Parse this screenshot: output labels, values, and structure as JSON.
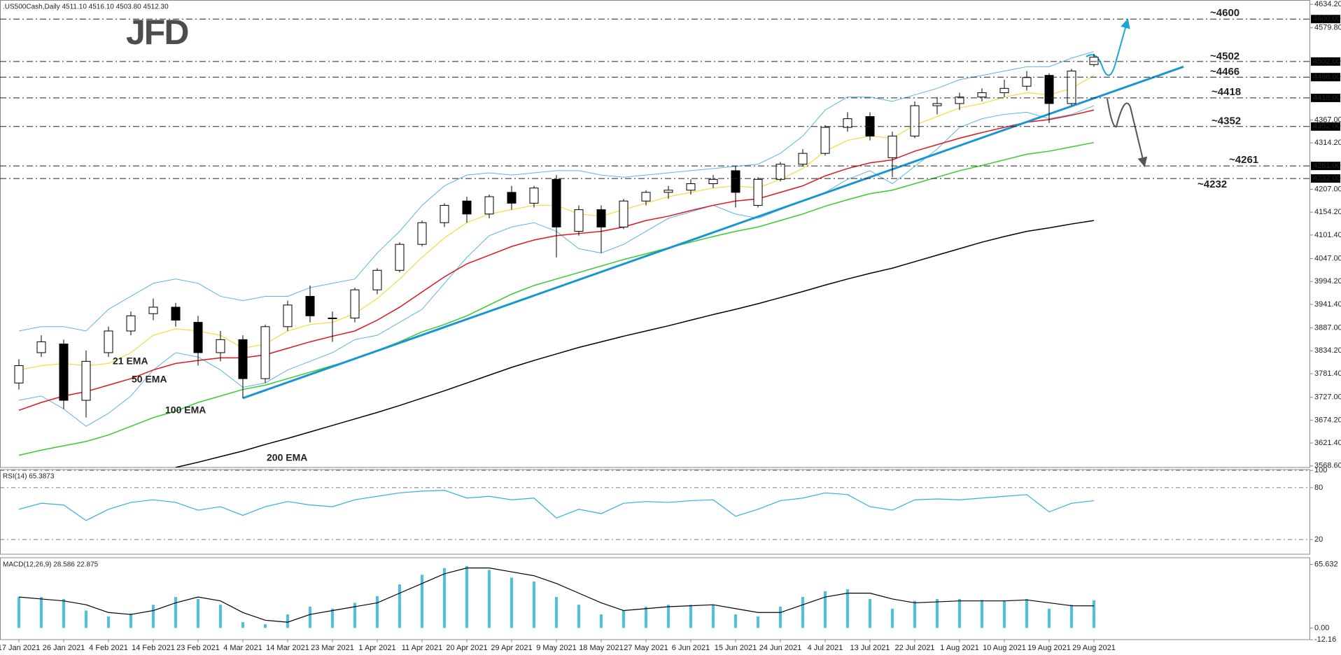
{
  "logo": "JFD",
  "chart_data": [
    {
      "type": "candlestick",
      "title": ".US500Cash,Daily  4511.10 4516.10 4503.80 4512.30",
      "categories": [
        "17 Jan 2021",
        null,
        "26 Jan 2021",
        null,
        "4 Feb 2021",
        null,
        "14 Feb 2021",
        null,
        "23 Feb 2021",
        null,
        "4 Mar 2021",
        null,
        "14 Mar 2021",
        null,
        "23 Mar 2021",
        null,
        "1 Apr 2021",
        null,
        "11 Apr 2021",
        null,
        "20 Apr 2021",
        null,
        "29 Apr 2021",
        null,
        "9 May 2021",
        null,
        "18 May 2021",
        null,
        "27 May 2021",
        null,
        "6 Jun 2021",
        null,
        "15 Jun 2021",
        null,
        "24 Jun 2021",
        null,
        "4 Jul 2021",
        null,
        "13 Jul 2021",
        null,
        "22 Jul 2021",
        null,
        "1 Aug 2021",
        null,
        "10 Aug 2021",
        null,
        "19 Aug 2021",
        null,
        "29 Aug 2021"
      ],
      "open": [
        3760,
        3830,
        3850,
        3720,
        3830,
        3880,
        3920,
        3935,
        3900,
        3830,
        3860,
        3770,
        3890,
        3960,
        3910,
        3910,
        3975,
        4020,
        4080,
        4130,
        4180,
        4150,
        4200,
        4175,
        4230,
        4110,
        4160,
        4120,
        4180,
        4200,
        4205,
        4220,
        4250,
        4170,
        4230,
        4265,
        4290,
        4350,
        4375,
        4280,
        4330,
        4400,
        4405,
        4420,
        4430,
        4445,
        4470,
        4405,
        4495
      ],
      "high": [
        3815,
        3870,
        3860,
        3835,
        3890,
        3925,
        3955,
        3945,
        3915,
        3880,
        3870,
        3895,
        3950,
        3985,
        3925,
        3980,
        4025,
        4085,
        4135,
        4175,
        4190,
        4195,
        4215,
        4215,
        4240,
        4170,
        4170,
        4185,
        4205,
        4215,
        4230,
        4240,
        4260,
        4235,
        4270,
        4300,
        4355,
        4385,
        4385,
        4340,
        4410,
        4420,
        4430,
        4440,
        4460,
        4480,
        4475,
        4485,
        4520
      ],
      "low": [
        3745,
        3820,
        3700,
        3680,
        3820,
        3870,
        3905,
        3890,
        3800,
        3810,
        3725,
        3760,
        3880,
        3900,
        3855,
        3900,
        3965,
        4015,
        4075,
        4120,
        4130,
        4140,
        4160,
        4165,
        4050,
        4100,
        4060,
        4115,
        4170,
        4185,
        4195,
        4210,
        4165,
        4165,
        4225,
        4260,
        4285,
        4340,
        4320,
        4235,
        4325,
        4380,
        4390,
        4410,
        4420,
        4435,
        4360,
        4400,
        4490
      ],
      "close": [
        3800,
        3855,
        3720,
        3810,
        3880,
        3915,
        3935,
        3905,
        3830,
        3860,
        3770,
        3890,
        3940,
        3915,
        3910,
        3975,
        4020,
        4080,
        4130,
        4170,
        4150,
        4190,
        4175,
        4210,
        4120,
        4160,
        4120,
        4180,
        4200,
        4205,
        4220,
        4230,
        4200,
        4230,
        4265,
        4290,
        4350,
        4370,
        4330,
        4330,
        4400,
        4405,
        4420,
        4430,
        4440,
        4465,
        4405,
        4480,
        4512
      ],
      "up_color": "#ffffff",
      "down_color": "#000000",
      "series": [
        {
          "name": "21 EMA",
          "color": "#f2dc3c",
          "values": [
            3790,
            3800,
            3805,
            3800,
            3805,
            3830,
            3870,
            3885,
            3880,
            3870,
            3840,
            3850,
            3880,
            3895,
            3900,
            3920,
            3955,
            4000,
            4050,
            4095,
            4130,
            4150,
            4160,
            4170,
            4170,
            4150,
            4145,
            4160,
            4175,
            4190,
            4200,
            4210,
            4215,
            4210,
            4230,
            4255,
            4295,
            4320,
            4330,
            4325,
            4355,
            4375,
            4395,
            4405,
            4420,
            4430,
            4425,
            4440,
            4470
          ]
        },
        {
          "name": "50 EMA",
          "color": "#e3141e",
          "values": [
            3697,
            3715,
            3730,
            3740,
            3755,
            3770,
            3790,
            3805,
            3812,
            3818,
            3818,
            3825,
            3840,
            3855,
            3868,
            3880,
            3905,
            3935,
            3970,
            4005,
            4035,
            4055,
            4075,
            4090,
            4100,
            4105,
            4110,
            4120,
            4135,
            4145,
            4158,
            4170,
            4180,
            4185,
            4200,
            4215,
            4238,
            4255,
            4268,
            4275,
            4295,
            4310,
            4325,
            4338,
            4350,
            4362,
            4368,
            4378,
            4390
          ]
        },
        {
          "name": "100 EMA",
          "color": "#36cc2e",
          "values": [
            3593,
            3605,
            3615,
            3625,
            3640,
            3660,
            3680,
            3695,
            3715,
            3730,
            3745,
            3755,
            3770,
            3785,
            3800,
            3815,
            3835,
            3855,
            3878,
            3895,
            3915,
            3940,
            3965,
            3985,
            4000,
            4015,
            4030,
            4045,
            4058,
            4072,
            4085,
            4098,
            4110,
            4120,
            4135,
            4150,
            4168,
            4183,
            4197,
            4205,
            4220,
            4235,
            4250,
            4262,
            4275,
            4288,
            4295,
            4305,
            4315
          ]
        },
        {
          "name": "200 EMA",
          "color": "#000000",
          "values": [
            null,
            null,
            null,
            null,
            null,
            null,
            null,
            3565,
            3577,
            3590,
            3603,
            3618,
            3632,
            3647,
            3662,
            3677,
            3692,
            3708,
            3725,
            3742,
            3760,
            3778,
            3796,
            3812,
            3827,
            3842,
            3855,
            3868,
            3880,
            3892,
            3905,
            3918,
            3930,
            3943,
            3957,
            3971,
            3986,
            4000,
            4013,
            4025,
            4040,
            4055,
            4070,
            4085,
            4098,
            4110,
            4118,
            4127,
            4135
          ]
        }
      ],
      "bollinger": {
        "color": "#5ab4e6",
        "upper": [
          3880,
          3890,
          3890,
          3880,
          3930,
          3960,
          3990,
          4000,
          3990,
          3960,
          3950,
          3960,
          3960,
          3980,
          3990,
          4000,
          4060,
          4110,
          4170,
          4215,
          4240,
          4245,
          4240,
          4245,
          4250,
          4250,
          4240,
          4235,
          4240,
          4245,
          4250,
          4255,
          4260,
          4265,
          4290,
          4330,
          4390,
          4420,
          4420,
          4410,
          4425,
          4440,
          4460,
          4470,
          4480,
          4490,
          4490,
          4510,
          4525
        ],
        "lower": [
          3720,
          3730,
          3700,
          3660,
          3690,
          3730,
          3790,
          3830,
          3820,
          3790,
          3750,
          3760,
          3790,
          3810,
          3830,
          3860,
          3870,
          3900,
          3930,
          3990,
          4050,
          4100,
          4120,
          4130,
          4110,
          4070,
          4060,
          4080,
          4110,
          4140,
          4155,
          4170,
          4150,
          4140,
          4160,
          4180,
          4200,
          4230,
          4250,
          4220,
          4260,
          4300,
          4350,
          4370,
          4380,
          4385,
          4370,
          4380,
          4400
        ]
      },
      "trendline": {
        "color": "#1996d2",
        "x": [
          10,
          52
        ],
        "values": [
          3725,
          4490
        ]
      },
      "levels": [
        {
          "value": 4600,
          "label": "4600.00",
          "annotation": "~4600",
          "color": "#1aa7d6"
        },
        {
          "value": 4502,
          "label": "4502.00",
          "annotation": "~4502",
          "color": "#1aa7d6"
        },
        {
          "value": 4466,
          "label": "4466.00",
          "annotation": "~4466",
          "color": "#1aa7d6"
        },
        {
          "value": 4418,
          "label": "4418.00",
          "annotation": "~4418",
          "color": "#555555"
        },
        {
          "value": 4352,
          "label": "4352.00",
          "annotation": "~4352",
          "color": "#555555"
        },
        {
          "value": 4261,
          "label": "4261.00",
          "annotation": "~4261",
          "color": "#555555"
        },
        {
          "value": 4232,
          "label": "4232.00",
          "annotation": "~4232",
          "color": "#555555"
        }
      ],
      "ylim": [
        3565,
        4644
      ],
      "yticks": [
        {
          "value": 4634.2,
          "label": "4634.20"
        },
        {
          "value": 4579.8,
          "label": "4579.80"
        },
        {
          "value": 4367,
          "label": "4367.00"
        },
        {
          "value": 4314.2,
          "label": "4314.20"
        },
        {
          "value": 4207,
          "label": "4207.00"
        },
        {
          "value": 4154.2,
          "label": "4154.20"
        },
        {
          "value": 4101.4,
          "label": "4101.40"
        },
        {
          "value": 4047,
          "label": "4047.00"
        },
        {
          "value": 3994.2,
          "label": "3994.20"
        },
        {
          "value": 3941.4,
          "label": "3941.40"
        },
        {
          "value": 3887,
          "label": "3887.00"
        },
        {
          "value": 3834.2,
          "label": "3834.20"
        },
        {
          "value": 3781.4,
          "label": "3781.40"
        },
        {
          "value": 3727,
          "label": "3727.00"
        },
        {
          "value": 3674.2,
          "label": "3674.20"
        },
        {
          "value": 3621.4,
          "label": "3621.40"
        },
        {
          "value": 3568.6,
          "label": "3568.60"
        }
      ]
    },
    {
      "type": "line",
      "title": "RSI(14) 65.3873",
      "color": "#2fb1dc",
      "values": [
        55,
        62,
        60,
        42,
        55,
        63,
        66,
        63,
        54,
        58,
        48,
        58,
        64,
        60,
        58,
        66,
        70,
        74,
        76,
        77,
        68,
        70,
        66,
        68,
        45,
        55,
        50,
        62,
        64,
        63,
        65,
        66,
        47,
        55,
        65,
        68,
        74,
        72,
        58,
        54,
        66,
        67,
        66,
        68,
        70,
        72,
        52,
        62,
        65
      ],
      "ylim": [
        3,
        101
      ],
      "yticks": [
        100,
        80,
        20
      ],
      "grid": true
    },
    {
      "type": "macd",
      "title": "MACD(12,26,9) 28.586 22.875",
      "color": "#4fbfe0",
      "values": [
        32,
        32,
        30,
        18,
        12,
        15,
        24,
        32,
        30,
        24,
        6,
        4,
        14,
        22,
        20,
        26,
        33,
        45,
        55,
        62,
        64,
        60,
        52,
        48,
        32,
        24,
        14,
        18,
        22,
        24,
        24,
        24,
        14,
        12,
        22,
        32,
        38,
        40,
        30,
        20,
        28,
        30,
        30,
        29,
        28,
        30,
        20,
        24,
        28.6
      ],
      "signal": {
        "color": "#000000",
        "values": [
          32,
          30,
          28,
          24,
          16,
          14,
          18,
          26,
          32,
          28,
          16,
          8,
          6,
          14,
          18,
          22,
          26,
          36,
          46,
          56,
          62,
          62,
          58,
          54,
          46,
          36,
          26,
          18,
          20,
          22,
          23,
          24,
          20,
          16,
          16,
          24,
          32,
          36,
          36,
          30,
          26,
          27,
          28,
          28,
          28,
          29,
          26,
          23,
          22.9
        ]
      },
      "ylim": [
        -12,
        72.6
      ],
      "yticks": [
        65.632,
        {
          "value": 0,
          "label": "0.00"
        },
        -12.16
      ]
    }
  ]
}
